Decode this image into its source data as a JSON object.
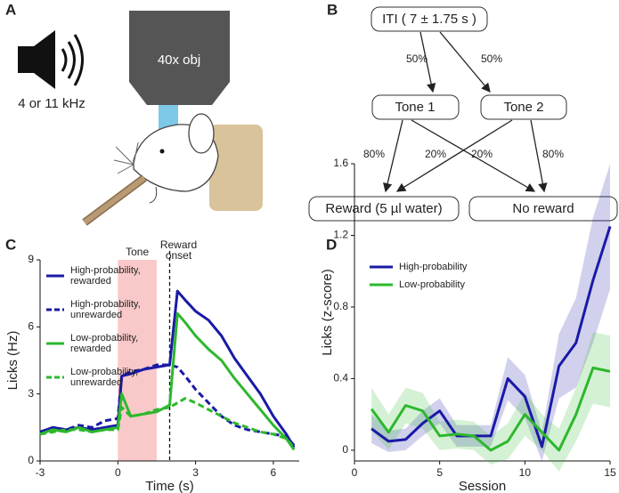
{
  "panels": [
    "A",
    "B",
    "C",
    "D"
  ],
  "illustration": {
    "speaker_label": "4 or 11 kHz",
    "objective_label": "40x obj"
  },
  "diagram": {
    "nodes": [
      {
        "label": "ITI ( 7 ± 1.75 s )"
      },
      {
        "label": "Tone 1"
      },
      {
        "label": "Tone 2"
      },
      {
        "label": "Reward (5 µl water)"
      },
      {
        "label": "No reward"
      }
    ],
    "edges": [
      {
        "label": "50%"
      },
      {
        "label": "50%"
      },
      {
        "label": "80%"
      },
      {
        "label": "20%"
      },
      {
        "label": "20%"
      },
      {
        "label": "80%"
      }
    ]
  },
  "chart_data": [
    {
      "type": "line",
      "xlabel": "Time (s)",
      "ylabel": "Licks (Hz)",
      "xlim": [
        -3,
        7
      ],
      "xticks": [
        -3,
        0,
        3,
        6
      ],
      "ylim": [
        0,
        9
      ],
      "yticks": [
        0,
        3,
        6,
        9
      ],
      "tone_region": {
        "x": [
          0,
          1.5
        ],
        "label": "Tone",
        "color": "#f9c9c9"
      },
      "reward_line": {
        "x": 2,
        "label": [
          "Reward",
          "onset"
        ]
      },
      "x": [
        -3,
        -2.5,
        -2,
        -1.5,
        -1,
        -0.5,
        0,
        0.15,
        0.5,
        1,
        1.5,
        2,
        2.3,
        2.6,
        3,
        3.5,
        4,
        4.5,
        5,
        5.5,
        6,
        6.5,
        6.8
      ],
      "series": [
        {
          "name": "High-probability, rewarded",
          "color": "#1a1aa6",
          "dashed": false,
          "values": [
            1.3,
            1.5,
            1.4,
            1.5,
            1.4,
            1.5,
            1.6,
            3.8,
            3.9,
            4.1,
            4.2,
            4.3,
            7.6,
            7.2,
            6.7,
            6.3,
            5.6,
            4.6,
            3.8,
            3.0,
            2.0,
            1.2,
            0.6
          ]
        },
        {
          "name": "High-probability, unrewarded",
          "color": "#1a1aa6",
          "dashed": true,
          "values": [
            1.3,
            1.5,
            1.4,
            1.6,
            1.5,
            1.8,
            1.9,
            3.8,
            4.0,
            4.1,
            4.3,
            4.3,
            4.2,
            3.8,
            3.2,
            2.6,
            2.0,
            1.6,
            1.4,
            1.3,
            1.2,
            1.1,
            0.7
          ]
        },
        {
          "name": "Low-probability, rewarded",
          "color": "#2db82d",
          "dashed": false,
          "values": [
            1.2,
            1.4,
            1.3,
            1.5,
            1.3,
            1.4,
            1.5,
            3.0,
            2.0,
            2.1,
            2.2,
            2.5,
            6.6,
            6.2,
            5.6,
            5.0,
            4.5,
            3.7,
            3.0,
            2.3,
            1.6,
            1.0,
            0.5
          ]
        },
        {
          "name": "Low-probability, unrewarded",
          "color": "#2db82d",
          "dashed": true,
          "values": [
            1.2,
            1.3,
            1.4,
            1.4,
            1.3,
            1.4,
            1.4,
            2.4,
            2.0,
            2.1,
            2.3,
            2.4,
            2.6,
            2.8,
            2.6,
            2.3,
            2.0,
            1.7,
            1.5,
            1.3,
            1.2,
            1.0,
            0.6
          ]
        }
      ]
    },
    {
      "type": "line",
      "xlabel": "Session",
      "ylabel": "Licks (z-score)",
      "xlim": [
        0,
        15
      ],
      "xticks": [
        0,
        5,
        10,
        15
      ],
      "ylim": [
        -0.06,
        1.6
      ],
      "yticks": [
        0,
        0.4,
        0.8,
        1.2,
        1.6
      ],
      "x": [
        1,
        2,
        3,
        4,
        5,
        6,
        7,
        8,
        9,
        10,
        11,
        12,
        13,
        14,
        15
      ],
      "series": [
        {
          "name": "High-probability",
          "color": "#1a1aa6",
          "dashed": false,
          "values": [
            0.12,
            0.05,
            0.06,
            0.15,
            0.22,
            0.08,
            0.08,
            0.08,
            0.4,
            0.3,
            0.02,
            0.47,
            0.6,
            0.95,
            1.25
          ],
          "error": [
            0.08,
            0.06,
            0.06,
            0.07,
            0.07,
            0.06,
            0.06,
            0.06,
            0.12,
            0.12,
            0.08,
            0.18,
            0.25,
            0.35,
            0.35
          ]
        },
        {
          "name": "Low-probability",
          "color": "#2db82d",
          "dashed": false,
          "values": [
            0.23,
            0.1,
            0.25,
            0.22,
            0.08,
            0.09,
            0.08,
            0.0,
            0.05,
            0.2,
            0.1,
            0.0,
            0.2,
            0.46,
            0.44
          ],
          "error": [
            0.12,
            0.1,
            0.1,
            0.1,
            0.08,
            0.08,
            0.08,
            0.08,
            0.1,
            0.12,
            0.1,
            0.12,
            0.15,
            0.2,
            0.2
          ]
        }
      ]
    }
  ]
}
